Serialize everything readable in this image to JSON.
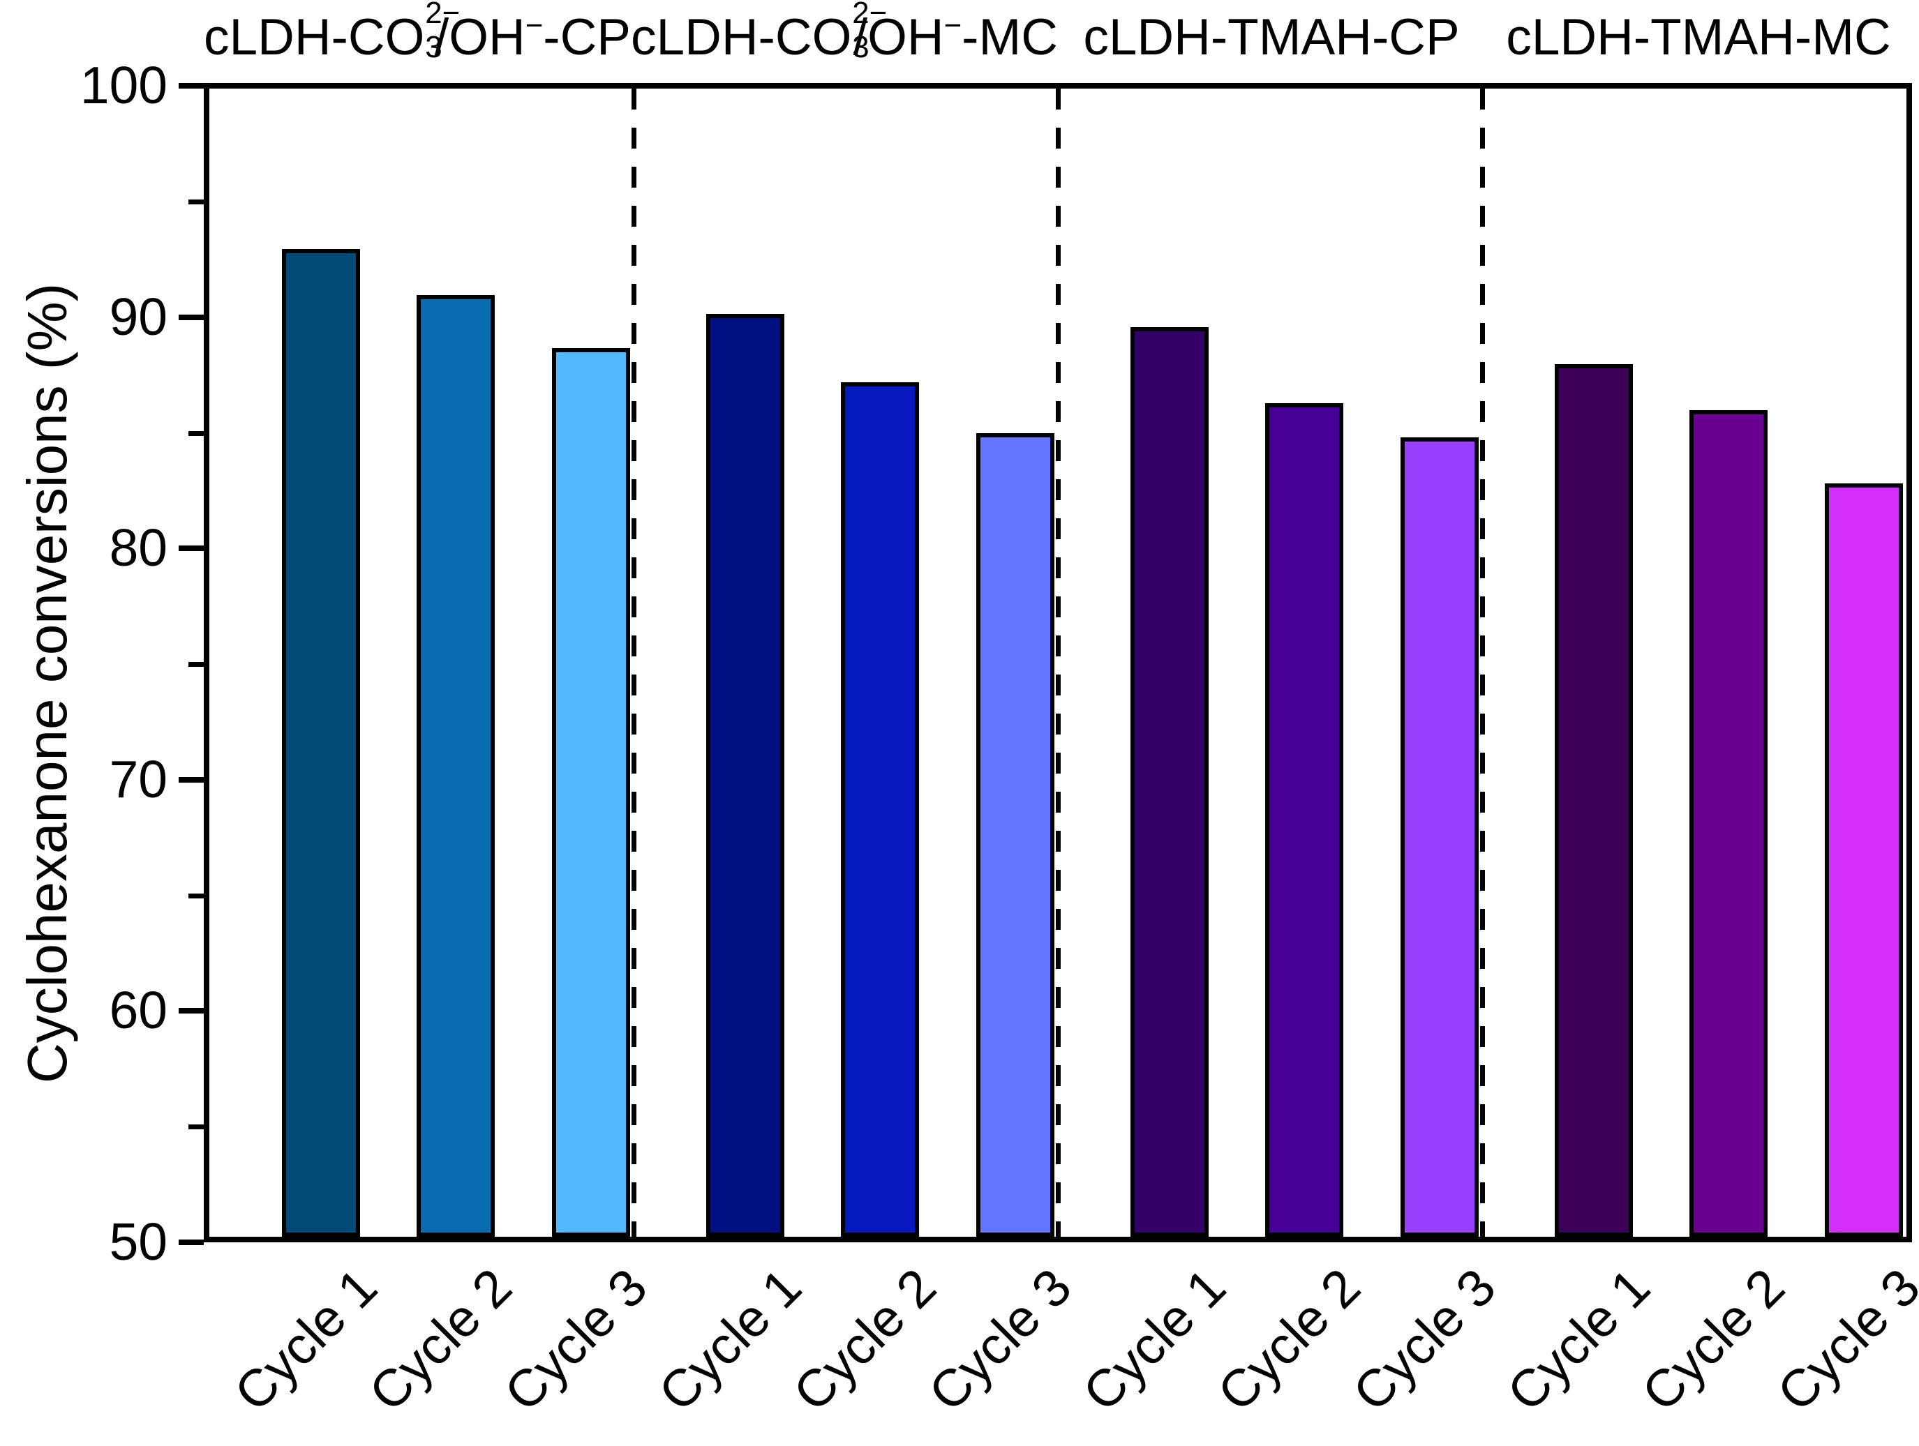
{
  "chart_data": {
    "type": "bar",
    "title": "",
    "ylabel": "Cyclohexanone conversions (%)",
    "xlabel": "",
    "ylim": [
      50,
      100
    ],
    "ytick_labels": [
      "100",
      "90",
      "80",
      "70",
      "60",
      "50"
    ],
    "yticks_major": [
      100,
      90,
      80,
      70,
      60,
      50
    ],
    "yticks_minor": [
      95,
      85,
      75,
      65,
      55
    ],
    "grid": false,
    "legend": "none",
    "bar_outline_color": "#000000",
    "axis_color": "#000000",
    "group_divider_style": "dashed-vertical-lines",
    "categories": [
      "Cycle 1",
      "Cycle 2",
      "Cycle 3"
    ],
    "groups": [
      {
        "name": "cLDH-CO₃²⁻/OH⁻-CP",
        "label": {
          "p1": "cLDH-CO",
          "sub1": "3",
          "sup1": "2−",
          "p2": "/OH",
          "sup2": "−",
          "p3": "-CP"
        },
        "series": [
          {
            "category": "Cycle 1",
            "value": 93.0,
            "color": "#004a75"
          },
          {
            "category": "Cycle 2",
            "value": 91.0,
            "color": "#0a6cb0"
          },
          {
            "category": "Cycle 3",
            "value": 88.7,
            "color": "#53b9ff"
          }
        ]
      },
      {
        "name": "cLDH-CO₃²⁻/OH⁻-MC",
        "label": {
          "p1": "cLDH-CO",
          "sub1": "3",
          "sup1": "2−",
          "p2": "/OH",
          "sup2": "−",
          "p3": "-MC"
        },
        "series": [
          {
            "category": "Cycle 1",
            "value": 90.2,
            "color": "#001080"
          },
          {
            "category": "Cycle 2",
            "value": 87.2,
            "color": "#0519be"
          },
          {
            "category": "Cycle 3",
            "value": 85.0,
            "color": "#6175ff"
          }
        ]
      },
      {
        "name": "cLDH-TMAH-CP",
        "label": {
          "p1": "cLDH-TMAH-CP"
        },
        "series": [
          {
            "category": "Cycle 1",
            "value": 89.6,
            "color": "#330066"
          },
          {
            "category": "Cycle 2",
            "value": 86.3,
            "color": "#470096"
          },
          {
            "category": "Cycle 3",
            "value": 84.8,
            "color": "#9940ff"
          }
        ]
      },
      {
        "name": "cLDH-TMAH-MC",
        "label": {
          "p1": "cLDH-TMAH-MC"
        },
        "series": [
          {
            "category": "Cycle 1",
            "value": 88.0,
            "color": "#3d0059"
          },
          {
            "category": "Cycle 2",
            "value": 86.0,
            "color": "#6a0090"
          },
          {
            "category": "Cycle 3",
            "value": 82.8,
            "color": "#d62efa"
          }
        ]
      }
    ]
  }
}
